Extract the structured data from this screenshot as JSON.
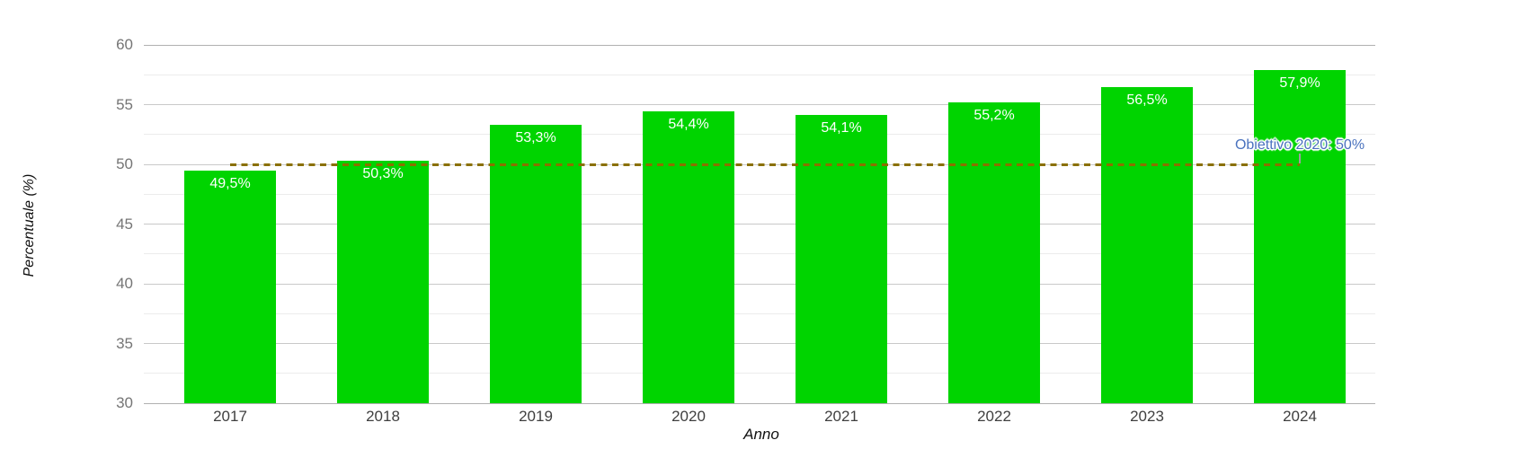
{
  "chart_data": {
    "type": "bar",
    "title": "",
    "xlabel": "Anno",
    "ylabel": "Percentuale (%)",
    "categories": [
      "2017",
      "2018",
      "2019",
      "2020",
      "2021",
      "2022",
      "2023",
      "2024"
    ],
    "values": [
      49.5,
      50.3,
      53.3,
      54.4,
      54.1,
      55.2,
      56.5,
      57.9
    ],
    "value_labels": [
      "49,5%",
      "50,3%",
      "53,3%",
      "54,4%",
      "54,1%",
      "55,2%",
      "56,5%",
      "57,9%"
    ],
    "ylim": [
      30,
      60
    ],
    "y_major_ticks": [
      30,
      35,
      40,
      45,
      50,
      55,
      60
    ],
    "y_minor_ticks": [
      32.5,
      37.5,
      42.5,
      47.5,
      52.5,
      57.5
    ],
    "grid": "on",
    "legend": "none",
    "target_line": {
      "value": 50,
      "label": "Obiettivo 2020: 50%",
      "span_from": "2017",
      "span_to": "2024"
    },
    "colors": {
      "bar": "#00d400",
      "target_line": "#8a7000",
      "annotation_text": "#4a72be",
      "annotation_stem": "#9e9e9e",
      "grid_major": "#c9c9c9",
      "grid_minor": "#ececec",
      "axis_edge": "#b0b0b0",
      "y_tick_label": "#757575",
      "x_tick_label": "#3f3f3f",
      "value_label": "#ffffff",
      "background": "#ffffff"
    }
  }
}
